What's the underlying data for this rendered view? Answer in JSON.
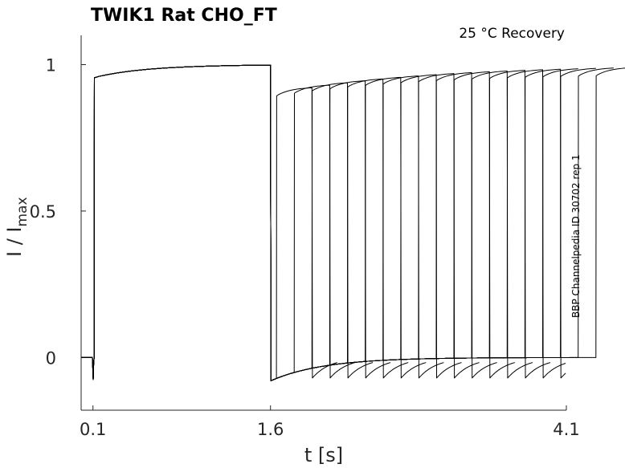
{
  "chart_data": {
    "type": "line",
    "title": "TWIK1  Rat  CHO_FT",
    "condition": "25 °C  Recovery",
    "side_note": "BBP Channelpedia ID 30702 rep 1",
    "xlabel": "t [s]",
    "ylabel": "I / I",
    "ylabel_sub": "max",
    "xlim": [
      0.0,
      4.1
    ],
    "ylim": [
      -0.18,
      1.1
    ],
    "xticks": [
      0.1,
      1.6,
      4.1
    ],
    "xtick_labels": [
      "0.1",
      "1.6",
      "4.1"
    ],
    "yticks": [
      0,
      0.5,
      1
    ],
    "ytick_labels": [
      "0",
      "0.5",
      "1"
    ],
    "grid": false,
    "protocol": {
      "prepulse_start": 0.1,
      "prepulse_end": 1.6,
      "recovery_intervals": [
        0.05,
        0.2,
        0.35,
        0.5,
        0.65,
        0.8,
        0.95,
        1.1,
        1.25,
        1.4,
        1.55,
        1.7,
        1.85,
        2.0,
        2.15,
        2.3,
        2.45,
        2.6,
        2.75
      ],
      "test_pulse_duration": 0.3
    },
    "series": [
      {
        "color": "#000000",
        "points": [
          {
            "t": 0.0,
            "i": 0.0
          },
          {
            "t": 0.1,
            "i": 0.0
          },
          {
            "t": 0.11,
            "i": 0.96
          },
          {
            "t": 0.3,
            "i": 0.975
          },
          {
            "t": 0.6,
            "i": 0.985
          },
          {
            "t": 1.0,
            "i": 0.993
          },
          {
            "t": 1.6,
            "i": 1.0
          },
          {
            "t": 1.605,
            "i": -0.08
          },
          {
            "t": 1.8,
            "i": -0.045
          },
          {
            "t": 2.3,
            "i": -0.02
          },
          {
            "t": 3.0,
            "i": -0.005
          },
          {
            "t": 4.1,
            "i": 0.0
          }
        ]
      }
    ]
  }
}
